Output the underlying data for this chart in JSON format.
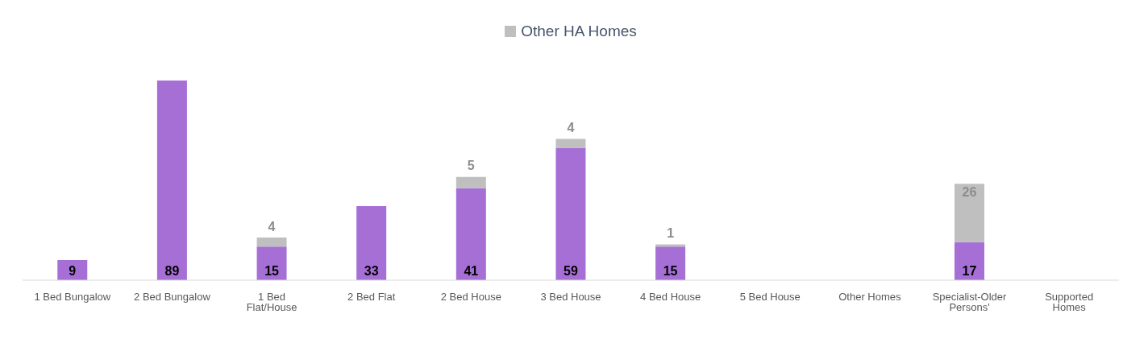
{
  "chart_data": {
    "type": "bar",
    "stacked": true,
    "categories": [
      "1 Bed Bungalow",
      "2 Bed Bungalow",
      "1 Bed Flat/House",
      "2 Bed Flat",
      "2 Bed House",
      "3 Bed House",
      "4 Bed House",
      "5 Bed House",
      "Other Homes",
      "Specialist-Older Persons'",
      "Supported Homes"
    ],
    "series": [
      {
        "color": "#a66fd6",
        "values": [
          9,
          89,
          15,
          33,
          41,
          59,
          15,
          null,
          null,
          17,
          null
        ]
      },
      {
        "name": "Other HA Homes",
        "color": "#bfbfbf",
        "values": [
          null,
          null,
          4,
          null,
          5,
          4,
          1,
          null,
          null,
          26,
          null
        ]
      }
    ],
    "data_labels": true,
    "legend": "top",
    "grid": false
  }
}
